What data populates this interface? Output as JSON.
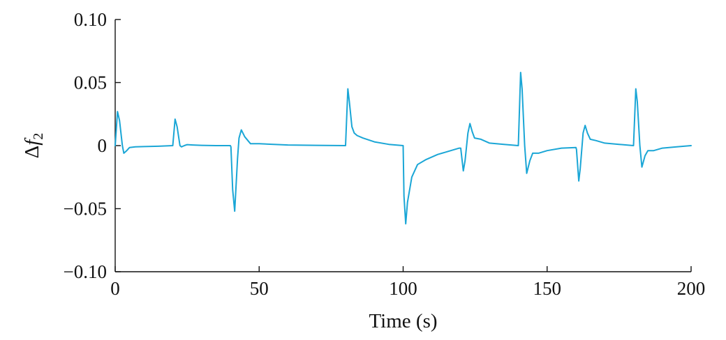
{
  "chart_data": {
    "type": "line",
    "title": "",
    "xlabel": "Time (s)",
    "ylabel_symbol": "Δ",
    "ylabel_var": "f",
    "ylabel_sub": "2",
    "xlim": [
      0,
      200
    ],
    "ylim": [
      -0.1,
      0.1
    ],
    "grid": false,
    "line_color": "#1aa6d6",
    "x_ticks": [
      0,
      50,
      100,
      150,
      200
    ],
    "x_tick_labels": [
      "0",
      "50",
      "100",
      "150",
      "200"
    ],
    "y_ticks": [
      0.1,
      0.05,
      0,
      -0.05,
      -0.1
    ],
    "y_tick_labels": [
      "0.10",
      "0.05",
      "0",
      "−0.05",
      "−0.10"
    ],
    "series": [
      {
        "x": [
          0,
          0.8,
          1.5,
          2.5,
          3,
          4,
          5,
          7,
          10,
          15,
          20,
          20.8,
          21.5,
          22.5,
          23,
          24,
          25,
          27,
          30,
          35,
          40,
          40.2,
          40.8,
          41.5,
          42.5,
          43,
          43.8,
          45,
          47,
          50,
          60,
          70,
          80,
          80.8,
          81.3,
          82.2,
          83,
          84,
          86,
          90,
          95,
          100,
          100.3,
          100.9,
          101.5,
          103,
          105,
          108,
          112,
          115,
          119.5,
          120,
          120.9,
          121.5,
          122.5,
          123.2,
          124,
          124.8,
          127,
          130,
          135,
          140,
          140.8,
          141.3,
          142.2,
          142.9,
          144,
          145,
          147,
          150,
          155,
          160,
          160.2,
          161,
          161.5,
          162.5,
          163.2,
          164,
          165,
          167,
          170,
          175,
          180,
          180.8,
          181.3,
          182.2,
          182.9,
          184,
          185,
          187,
          190,
          195,
          200
        ],
        "y": [
          0,
          0.027,
          0.02,
          0,
          -0.006,
          -0.004,
          -0.0015,
          -0.001,
          -0.0008,
          -0.0005,
          0,
          0.021,
          0.015,
          0,
          -0.001,
          0,
          0.0008,
          0.0005,
          0.0002,
          0,
          0,
          -0.001,
          -0.035,
          -0.052,
          -0.01,
          0.006,
          0.0125,
          0.007,
          0.0015,
          0.0015,
          0.0005,
          0.0002,
          0,
          0.045,
          0.035,
          0.015,
          0.01,
          0.008,
          0.006,
          0.003,
          0.001,
          0,
          -0.04,
          -0.062,
          -0.045,
          -0.025,
          -0.015,
          -0.011,
          -0.007,
          -0.005,
          -0.002,
          -0.002,
          -0.02,
          -0.012,
          0.01,
          0.0175,
          0.011,
          0.006,
          0.005,
          0.002,
          0.001,
          0,
          0.058,
          0.045,
          0.0,
          -0.022,
          -0.012,
          -0.006,
          -0.006,
          -0.004,
          -0.002,
          -0.0015,
          -0.003,
          -0.028,
          -0.018,
          0.01,
          0.016,
          0.01,
          0.005,
          0.004,
          0.002,
          0.001,
          0,
          0.045,
          0.035,
          0.0,
          -0.017,
          -0.008,
          -0.004,
          -0.004,
          -0.002,
          -0.001,
          0
        ]
      }
    ]
  }
}
